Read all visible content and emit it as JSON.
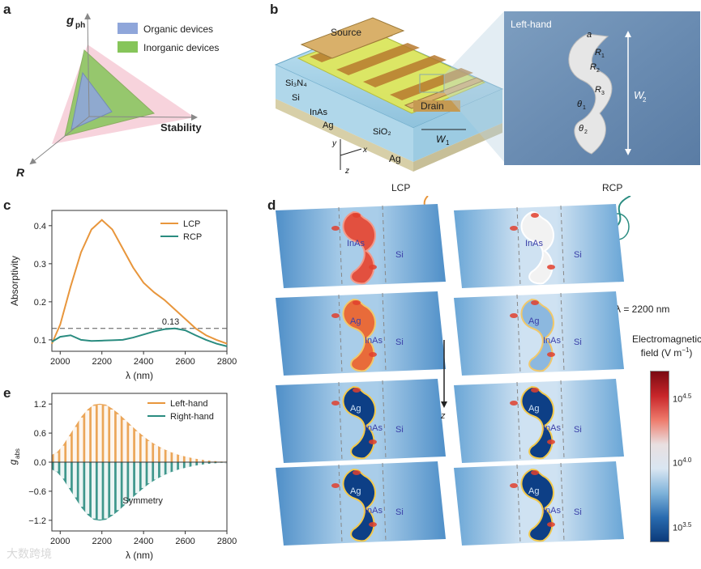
{
  "panels": {
    "a": "a",
    "b": "b",
    "c": "c",
    "d": "d",
    "e": "e"
  },
  "colors": {
    "orange": "#E8963C",
    "teal": "#2A8C80",
    "pink": "#F6CBD6",
    "green": "#86C55A",
    "blue": "#8FA6DA"
  },
  "panel_a": {
    "axis_top": "g",
    "axis_top_sub": "ph",
    "axis_right": "Stability",
    "axis_left": "R",
    "legend": [
      "Organic devices",
      "Inorganic devices"
    ]
  },
  "panel_b": {
    "source": "Source",
    "drain": "Drain",
    "layers": [
      "Si₃N₄",
      "Si",
      "InAs",
      "Ag"
    ],
    "sio2": "SiO₂",
    "ag_base": "Ag",
    "w1": "W",
    "w1_sub": "1",
    "axes": [
      "y",
      "x",
      "z"
    ],
    "inset_title": "Left-hand",
    "inset_a": "a",
    "inset_r1": "R",
    "inset_r1_sub": "1",
    "inset_r2": "R",
    "inset_r2_sub": "2",
    "inset_r3": "R",
    "inset_r3_sub": "3",
    "inset_t1": "θ",
    "inset_t1_sub": "1",
    "inset_t2": "θ",
    "inset_t2_sub": "2",
    "inset_w2": "W",
    "inset_w2_sub": "2"
  },
  "panel_d": {
    "lcp": "LCP",
    "rcp": "RCP",
    "wavelength": "λ = 2200 nm",
    "z_label": "z",
    "cb_title": "Electromagnetic",
    "cb_title2": "field (V m",
    "cb_sup": "−1",
    "cb_close": ")",
    "cb_ticks": [
      {
        "base": "10",
        "exp": "4.5"
      },
      {
        "base": "10",
        "exp": "4.0"
      },
      {
        "base": "10",
        "exp": "3.5"
      }
    ],
    "labels": {
      "inas": "InAs",
      "si": "Si",
      "ag": "Ag"
    }
  },
  "watermark": "大数跨境",
  "chart_data": [
    {
      "type": "line",
      "panel": "c",
      "xlabel": "λ (nm)",
      "ylabel": "Absorptivity",
      "xlim": [
        1960,
        2800
      ],
      "ylim": [
        0.07,
        0.44
      ],
      "xticks": [
        2000,
        2200,
        2400,
        2600,
        2800
      ],
      "yticks": [
        0.1,
        0.2,
        0.3,
        0.4
      ],
      "reference_line": 0.13,
      "annotation": "0.13",
      "legend": [
        "LCP",
        "RCP"
      ],
      "series": [
        {
          "name": "LCP",
          "x": [
            1960,
            2000,
            2050,
            2100,
            2150,
            2200,
            2250,
            2300,
            2350,
            2400,
            2450,
            2500,
            2550,
            2600,
            2650,
            2700,
            2750,
            2800
          ],
          "values": [
            0.09,
            0.14,
            0.24,
            0.33,
            0.39,
            0.415,
            0.39,
            0.34,
            0.29,
            0.25,
            0.225,
            0.205,
            0.18,
            0.155,
            0.13,
            0.112,
            0.1,
            0.09
          ]
        },
        {
          "name": "RCP",
          "x": [
            1960,
            2000,
            2050,
            2100,
            2150,
            2200,
            2250,
            2300,
            2350,
            2400,
            2450,
            2500,
            2550,
            2600,
            2650,
            2700,
            2750,
            2800
          ],
          "values": [
            0.095,
            0.108,
            0.112,
            0.1,
            0.097,
            0.098,
            0.099,
            0.1,
            0.106,
            0.114,
            0.122,
            0.128,
            0.13,
            0.125,
            0.112,
            0.1,
            0.09,
            0.083
          ]
        }
      ]
    },
    {
      "type": "bar",
      "panel": "e",
      "xlabel": "λ (nm)",
      "ylabel": "g",
      "ylabel_sub": "abs",
      "xlim": [
        1960,
        2800
      ],
      "ylim": [
        -1.42,
        1.42
      ],
      "xticks": [
        2000,
        2200,
        2400,
        2600,
        2800
      ],
      "yticks": [
        1.2,
        0.6,
        0.0,
        -0.6,
        -1.2
      ],
      "yticklabels": [
        "1.2",
        "0.6",
        "0.0",
        "−0.6",
        "−1.2"
      ],
      "legend": [
        "Left-hand",
        "Right-hand"
      ],
      "annotation": "Symmetry",
      "series": [
        {
          "name": "Left-hand",
          "x": [
            1980,
            2010,
            2040,
            2070,
            2100,
            2130,
            2160,
            2190,
            2220,
            2250,
            2280,
            2310,
            2340,
            2370,
            2400,
            2430,
            2460,
            2490,
            2520,
            2550,
            2580,
            2610,
            2640,
            2670,
            2700,
            2730,
            2760,
            2790
          ],
          "values": [
            0.2,
            0.35,
            0.55,
            0.75,
            0.95,
            1.1,
            1.2,
            1.22,
            1.2,
            1.12,
            1.02,
            0.9,
            0.78,
            0.66,
            0.55,
            0.45,
            0.37,
            0.3,
            0.24,
            0.19,
            0.15,
            0.12,
            0.09,
            0.07,
            0.05,
            0.04,
            0.03,
            0.02
          ]
        },
        {
          "name": "Right-hand",
          "x": [
            1980,
            2010,
            2040,
            2070,
            2100,
            2130,
            2160,
            2190,
            2220,
            2250,
            2280,
            2310,
            2340,
            2370,
            2400,
            2430,
            2460,
            2490,
            2520,
            2550,
            2580,
            2610,
            2640,
            2670,
            2700,
            2730,
            2760,
            2790
          ],
          "values": [
            -0.2,
            -0.35,
            -0.55,
            -0.75,
            -0.95,
            -1.1,
            -1.2,
            -1.22,
            -1.2,
            -1.12,
            -1.02,
            -0.9,
            -0.78,
            -0.66,
            -0.55,
            -0.45,
            -0.37,
            -0.3,
            -0.24,
            -0.19,
            -0.15,
            -0.12,
            -0.09,
            -0.07,
            -0.05,
            -0.04,
            -0.03,
            -0.02
          ]
        }
      ]
    }
  ]
}
